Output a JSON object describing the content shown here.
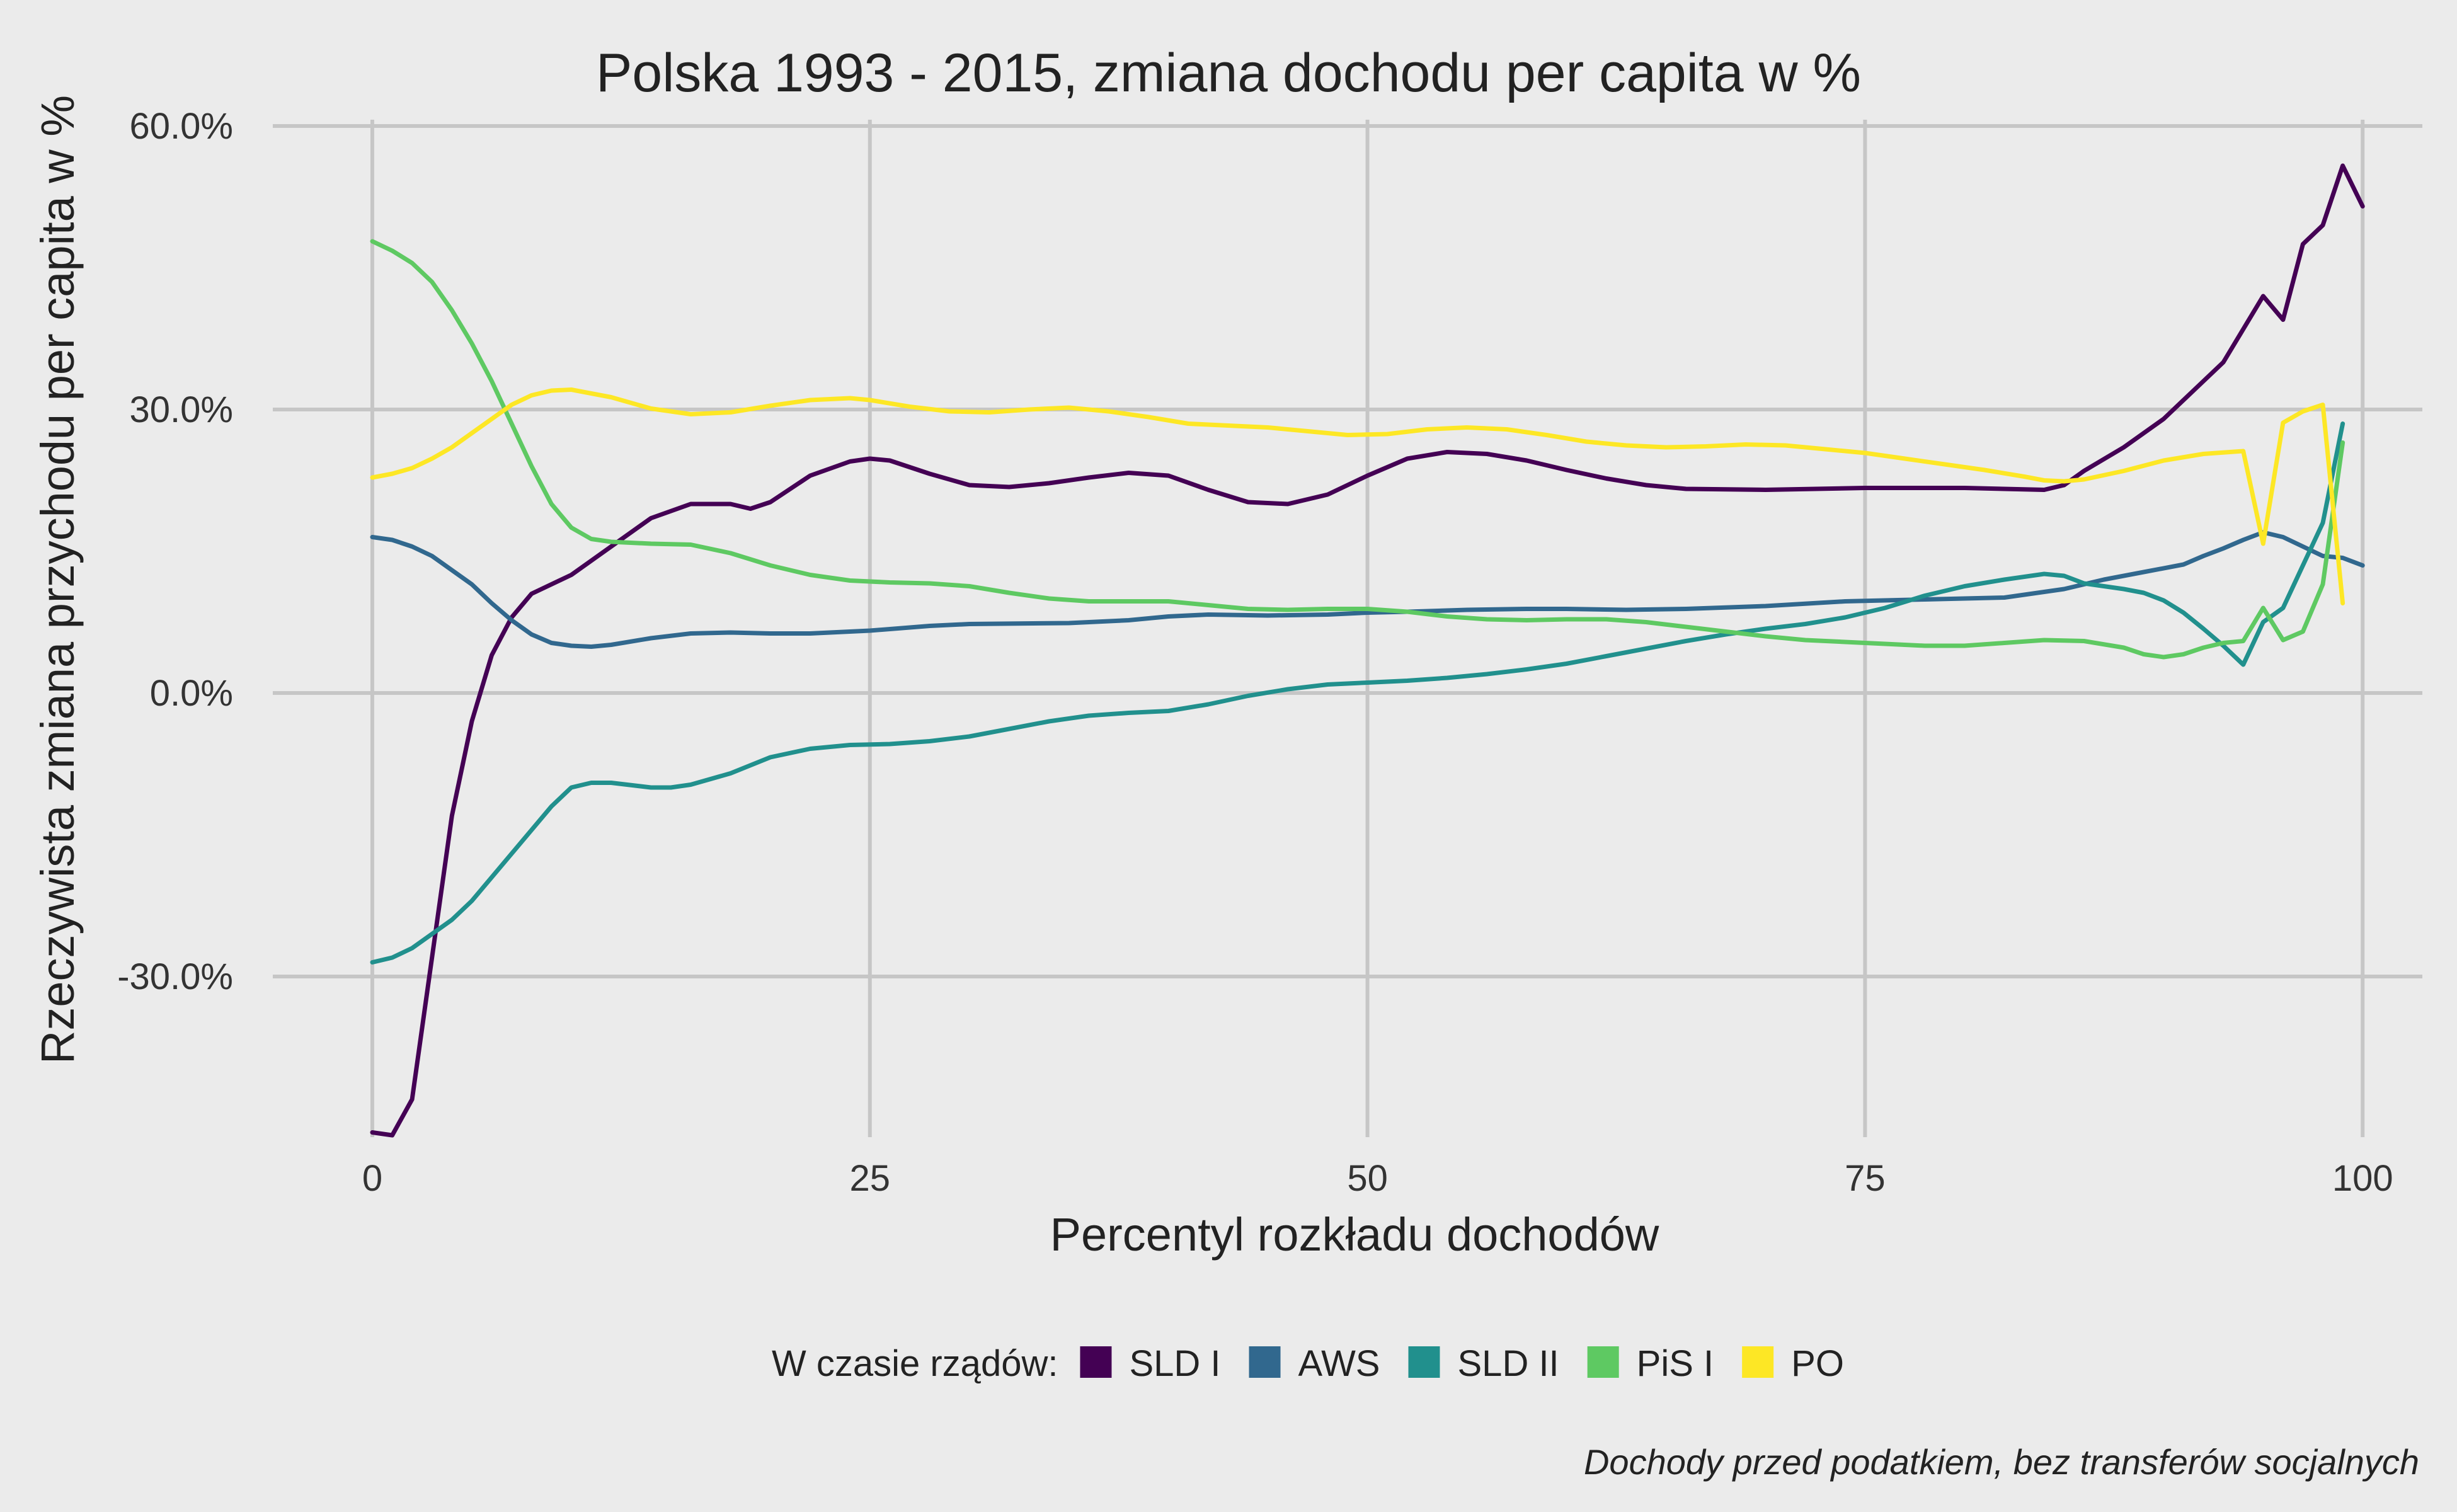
{
  "chart_data": {
    "type": "line",
    "title": "Polska 1993 - 2015, zmiana dochodu per capita w %",
    "xlabel": "Percentyl rozkładu dochodów",
    "ylabel": "Rzeczywista zmiana przychodu per capita w %",
    "caption": "Dochody przed podatkiem, bez transferów socjalnych",
    "xlim": [
      -5,
      103
    ],
    "ylim": [
      -47,
      62
    ],
    "x_ticks": [
      0,
      25,
      50,
      75,
      100
    ],
    "x_tick_labels": [
      "0",
      "25",
      "50",
      "75",
      "100"
    ],
    "y_ticks": [
      60,
      30,
      0,
      -30
    ],
    "y_tick_labels": [
      "60.0%",
      "30.0%",
      "0.0%",
      "-30.0%"
    ],
    "grid": true,
    "legend": {
      "title": "W czasie rządów:",
      "position": "bottom"
    },
    "series": [
      {
        "name": "SLD I",
        "color": "#440154",
        "points": [
          [
            0,
            -46.5
          ],
          [
            1,
            -46.8
          ],
          [
            2,
            -43
          ],
          [
            3,
            -28
          ],
          [
            4,
            -13
          ],
          [
            5,
            -3
          ],
          [
            6,
            4
          ],
          [
            7,
            8
          ],
          [
            8,
            10.5
          ],
          [
            10,
            12.5
          ],
          [
            12,
            15.5
          ],
          [
            14,
            18.5
          ],
          [
            16,
            20
          ],
          [
            18,
            20
          ],
          [
            19,
            19.5
          ],
          [
            20,
            20.2
          ],
          [
            22,
            23
          ],
          [
            24,
            24.5
          ],
          [
            25,
            24.8
          ],
          [
            26,
            24.6
          ],
          [
            28,
            23.2
          ],
          [
            30,
            22
          ],
          [
            32,
            21.8
          ],
          [
            34,
            22.2
          ],
          [
            36,
            22.8
          ],
          [
            38,
            23.3
          ],
          [
            40,
            23
          ],
          [
            42,
            21.5
          ],
          [
            44,
            20.2
          ],
          [
            46,
            20
          ],
          [
            48,
            21
          ],
          [
            50,
            23
          ],
          [
            52,
            24.8
          ],
          [
            54,
            25.5
          ],
          [
            56,
            25.3
          ],
          [
            58,
            24.6
          ],
          [
            60,
            23.6
          ],
          [
            62,
            22.7
          ],
          [
            64,
            22
          ],
          [
            66,
            21.6
          ],
          [
            70,
            21.5
          ],
          [
            75,
            21.7
          ],
          [
            80,
            21.7
          ],
          [
            84,
            21.5
          ],
          [
            85,
            22
          ],
          [
            86,
            23.5
          ],
          [
            88,
            26
          ],
          [
            90,
            29
          ],
          [
            92,
            33
          ],
          [
            93,
            35
          ],
          [
            94,
            38.5
          ],
          [
            95,
            42
          ],
          [
            96,
            39.5
          ],
          [
            97,
            47.5
          ],
          [
            98,
            49.5
          ],
          [
            99,
            55.8
          ],
          [
            100,
            51.5
          ]
        ]
      },
      {
        "name": "AWS",
        "color": "#31688e",
        "points": [
          [
            0,
            16.5
          ],
          [
            1,
            16.2
          ],
          [
            2,
            15.5
          ],
          [
            3,
            14.5
          ],
          [
            4,
            13
          ],
          [
            5,
            11.5
          ],
          [
            6,
            9.5
          ],
          [
            7,
            7.7
          ],
          [
            8,
            6.2
          ],
          [
            9,
            5.3
          ],
          [
            10,
            5
          ],
          [
            11,
            4.9
          ],
          [
            12,
            5.1
          ],
          [
            14,
            5.8
          ],
          [
            16,
            6.3
          ],
          [
            18,
            6.4
          ],
          [
            20,
            6.3
          ],
          [
            22,
            6.3
          ],
          [
            25,
            6.6
          ],
          [
            28,
            7.1
          ],
          [
            30,
            7.3
          ],
          [
            35,
            7.4
          ],
          [
            38,
            7.7
          ],
          [
            40,
            8.1
          ],
          [
            42,
            8.3
          ],
          [
            45,
            8.2
          ],
          [
            48,
            8.3
          ],
          [
            50,
            8.5
          ],
          [
            52,
            8.6
          ],
          [
            55,
            8.8
          ],
          [
            58,
            8.9
          ],
          [
            60,
            8.9
          ],
          [
            63,
            8.8
          ],
          [
            66,
            8.9
          ],
          [
            70,
            9.2
          ],
          [
            74,
            9.7
          ],
          [
            78,
            9.9
          ],
          [
            82,
            10.1
          ],
          [
            85,
            11
          ],
          [
            87,
            12
          ],
          [
            89,
            12.8
          ],
          [
            91,
            13.6
          ],
          [
            92,
            14.5
          ],
          [
            93,
            15.3
          ],
          [
            94,
            16.2
          ],
          [
            95,
            17
          ],
          [
            96,
            16.5
          ],
          [
            97,
            15.5
          ],
          [
            98,
            14.5
          ],
          [
            99,
            14.3
          ],
          [
            100,
            13.5
          ]
        ]
      },
      {
        "name": "SLD II",
        "color": "#21908d",
        "points": [
          [
            0,
            -28.5
          ],
          [
            1,
            -28
          ],
          [
            2,
            -27
          ],
          [
            3,
            -25.5
          ],
          [
            4,
            -24
          ],
          [
            5,
            -22
          ],
          [
            6,
            -19.5
          ],
          [
            7,
            -17
          ],
          [
            8,
            -14.5
          ],
          [
            9,
            -12
          ],
          [
            10,
            -10
          ],
          [
            11,
            -9.5
          ],
          [
            12,
            -9.5
          ],
          [
            14,
            -10
          ],
          [
            15,
            -10
          ],
          [
            16,
            -9.7
          ],
          [
            18,
            -8.5
          ],
          [
            20,
            -6.8
          ],
          [
            22,
            -5.9
          ],
          [
            24,
            -5.5
          ],
          [
            26,
            -5.4
          ],
          [
            28,
            -5.1
          ],
          [
            30,
            -4.6
          ],
          [
            32,
            -3.8
          ],
          [
            34,
            -3
          ],
          [
            36,
            -2.4
          ],
          [
            38,
            -2.1
          ],
          [
            40,
            -1.9
          ],
          [
            42,
            -1.2
          ],
          [
            44,
            -0.3
          ],
          [
            46,
            0.4
          ],
          [
            48,
            0.9
          ],
          [
            50,
            1.1
          ],
          [
            52,
            1.3
          ],
          [
            54,
            1.6
          ],
          [
            56,
            2
          ],
          [
            58,
            2.5
          ],
          [
            60,
            3.1
          ],
          [
            62,
            3.9
          ],
          [
            64,
            4.7
          ],
          [
            66,
            5.5
          ],
          [
            68,
            6.2
          ],
          [
            70,
            6.8
          ],
          [
            72,
            7.3
          ],
          [
            74,
            8
          ],
          [
            76,
            9
          ],
          [
            78,
            10.3
          ],
          [
            80,
            11.3
          ],
          [
            82,
            12
          ],
          [
            84,
            12.6
          ],
          [
            85,
            12.4
          ],
          [
            86,
            11.6
          ],
          [
            88,
            11
          ],
          [
            89,
            10.6
          ],
          [
            90,
            9.8
          ],
          [
            91,
            8.5
          ],
          [
            92,
            6.8
          ],
          [
            93,
            5
          ],
          [
            94,
            3
          ],
          [
            95,
            7.5
          ],
          [
            96,
            9
          ],
          [
            97,
            13.5
          ],
          [
            98,
            18
          ],
          [
            99,
            28.5
          ]
        ]
      },
      {
        "name": "PiS I",
        "color": "#5ec962",
        "points": [
          [
            0,
            47.8
          ],
          [
            1,
            46.8
          ],
          [
            2,
            45.5
          ],
          [
            3,
            43.5
          ],
          [
            4,
            40.5
          ],
          [
            5,
            37
          ],
          [
            6,
            33
          ],
          [
            7,
            28.5
          ],
          [
            8,
            24
          ],
          [
            9,
            20
          ],
          [
            10,
            17.5
          ],
          [
            11,
            16.3
          ],
          [
            12,
            16
          ],
          [
            14,
            15.8
          ],
          [
            16,
            15.7
          ],
          [
            18,
            14.8
          ],
          [
            20,
            13.5
          ],
          [
            22,
            12.5
          ],
          [
            24,
            11.9
          ],
          [
            26,
            11.7
          ],
          [
            28,
            11.6
          ],
          [
            30,
            11.3
          ],
          [
            32,
            10.6
          ],
          [
            34,
            10
          ],
          [
            36,
            9.7
          ],
          [
            38,
            9.7
          ],
          [
            40,
            9.7
          ],
          [
            42,
            9.3
          ],
          [
            44,
            8.9
          ],
          [
            46,
            8.8
          ],
          [
            48,
            8.9
          ],
          [
            50,
            8.9
          ],
          [
            52,
            8.6
          ],
          [
            54,
            8.1
          ],
          [
            56,
            7.8
          ],
          [
            58,
            7.7
          ],
          [
            60,
            7.8
          ],
          [
            62,
            7.8
          ],
          [
            64,
            7.5
          ],
          [
            66,
            7
          ],
          [
            68,
            6.5
          ],
          [
            70,
            6
          ],
          [
            72,
            5.6
          ],
          [
            74,
            5.4
          ],
          [
            76,
            5.2
          ],
          [
            78,
            5
          ],
          [
            80,
            5
          ],
          [
            82,
            5.3
          ],
          [
            84,
            5.6
          ],
          [
            86,
            5.5
          ],
          [
            88,
            4.8
          ],
          [
            89,
            4.1
          ],
          [
            90,
            3.8
          ],
          [
            91,
            4.1
          ],
          [
            92,
            4.8
          ],
          [
            93,
            5.3
          ],
          [
            94,
            5.5
          ],
          [
            95,
            9
          ],
          [
            96,
            5.6
          ],
          [
            97,
            6.5
          ],
          [
            98,
            11.5
          ],
          [
            99,
            26.5
          ]
        ]
      },
      {
        "name": "PO",
        "color": "#fde725",
        "points": [
          [
            0,
            22.8
          ],
          [
            1,
            23.2
          ],
          [
            2,
            23.8
          ],
          [
            3,
            24.8
          ],
          [
            4,
            26
          ],
          [
            5,
            27.5
          ],
          [
            6,
            29
          ],
          [
            7,
            30.5
          ],
          [
            8,
            31.5
          ],
          [
            9,
            32
          ],
          [
            10,
            32.1
          ],
          [
            12,
            31.3
          ],
          [
            14,
            30.1
          ],
          [
            16,
            29.5
          ],
          [
            18,
            29.7
          ],
          [
            20,
            30.4
          ],
          [
            22,
            31
          ],
          [
            24,
            31.2
          ],
          [
            25,
            31
          ],
          [
            27,
            30.3
          ],
          [
            29,
            29.8
          ],
          [
            31,
            29.7
          ],
          [
            33,
            30
          ],
          [
            35,
            30.2
          ],
          [
            37,
            29.8
          ],
          [
            39,
            29.2
          ],
          [
            41,
            28.5
          ],
          [
            43,
            28.3
          ],
          [
            45,
            28.1
          ],
          [
            47,
            27.7
          ],
          [
            49,
            27.3
          ],
          [
            51,
            27.4
          ],
          [
            53,
            27.9
          ],
          [
            55,
            28.1
          ],
          [
            57,
            27.9
          ],
          [
            59,
            27.3
          ],
          [
            61,
            26.6
          ],
          [
            63,
            26.2
          ],
          [
            65,
            26
          ],
          [
            67,
            26.1
          ],
          [
            69,
            26.3
          ],
          [
            71,
            26.2
          ],
          [
            73,
            25.8
          ],
          [
            75,
            25.4
          ],
          [
            77,
            24.8
          ],
          [
            79,
            24.2
          ],
          [
            81,
            23.6
          ],
          [
            83,
            22.9
          ],
          [
            84,
            22.5
          ],
          [
            85,
            22.4
          ],
          [
            86,
            22.6
          ],
          [
            88,
            23.5
          ],
          [
            90,
            24.6
          ],
          [
            92,
            25.3
          ],
          [
            94,
            25.6
          ],
          [
            95,
            15.8
          ],
          [
            96,
            28.6
          ],
          [
            97,
            29.8
          ],
          [
            98,
            30.5
          ],
          [
            99,
            9.5
          ]
        ]
      }
    ]
  }
}
